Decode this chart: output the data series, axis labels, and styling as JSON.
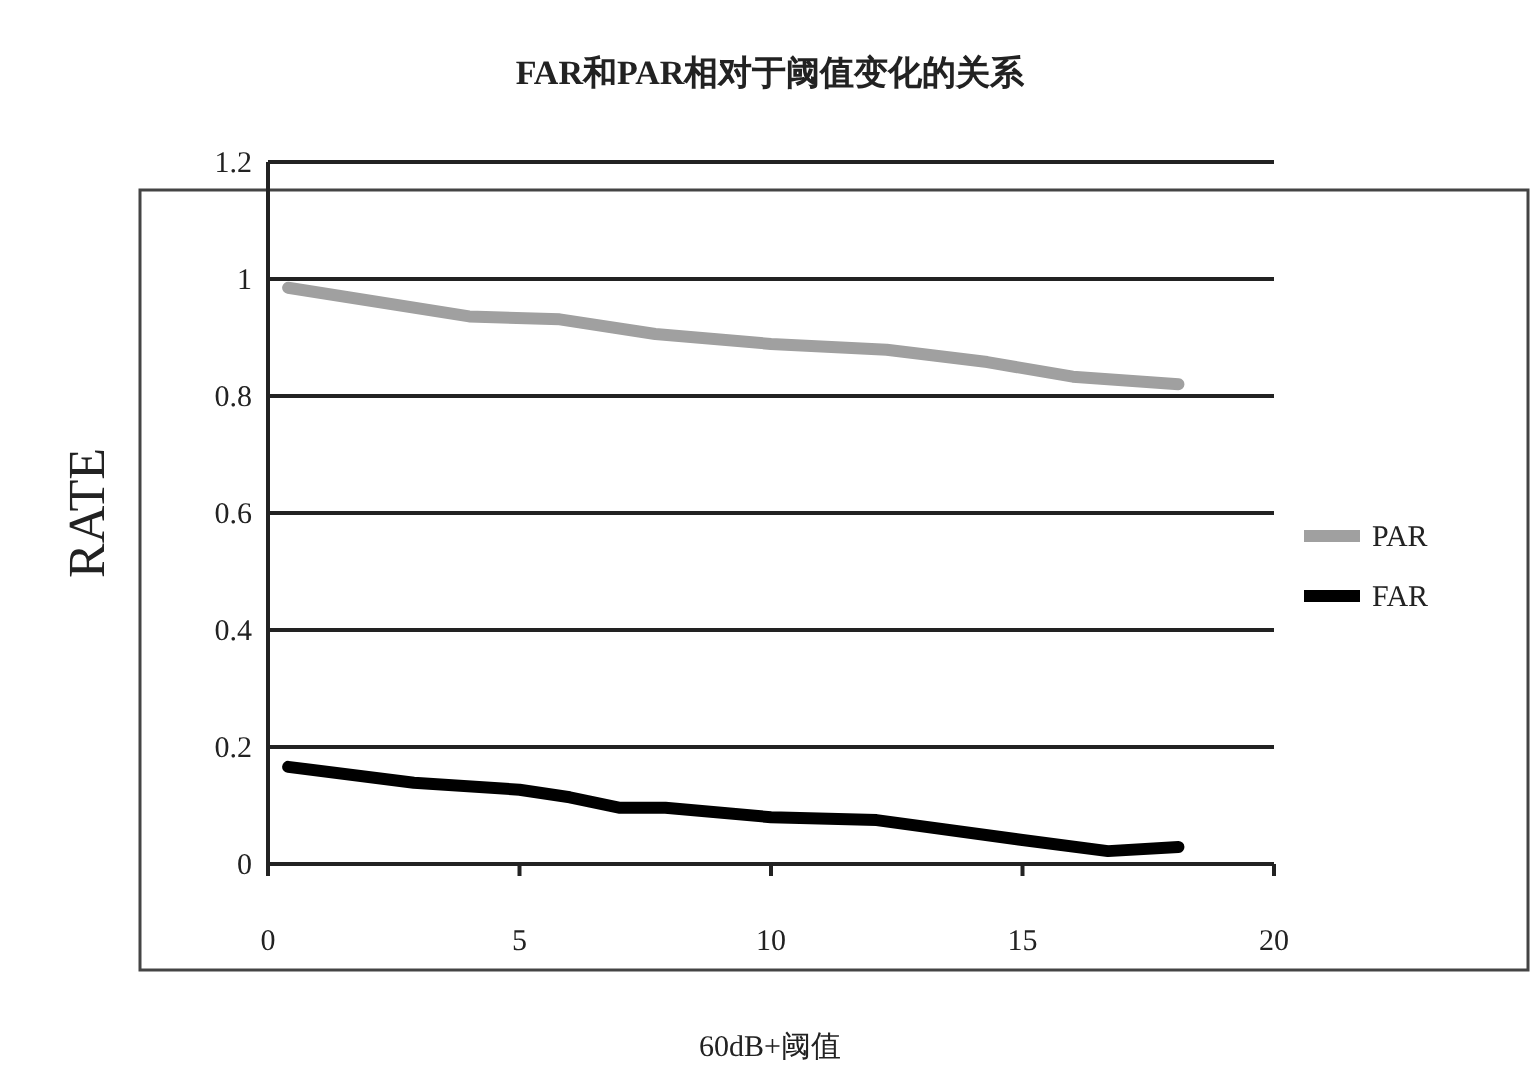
{
  "chart_data": {
    "type": "line",
    "title": "FAR和PAR相对于阈值变化的关系",
    "xlabel": "60dB+阈值",
    "ylabel": "RATE",
    "xlim": [
      0,
      20
    ],
    "xticks": [
      0,
      5,
      10,
      15,
      20
    ],
    "ylim": [
      0,
      1.2
    ],
    "yticks": [
      0,
      0.2,
      0.4,
      0.6,
      0.8,
      1,
      1.2
    ],
    "grid": "y",
    "legend": "right",
    "series": [
      {
        "name": "PAR",
        "color": "#a0a0a0",
        "x": [
          0.4,
          4,
          5.8,
          7.7,
          10,
          12.3,
          14.3,
          16,
          18.1
        ],
        "values": [
          0.985,
          0.936,
          0.931,
          0.906,
          0.889,
          0.879,
          0.858,
          0.833,
          0.82
        ]
      },
      {
        "name": "FAR",
        "color": "#000000",
        "x": [
          0.4,
          2.9,
          5,
          6,
          7,
          7.9,
          10,
          12.1,
          15,
          16.7,
          18.1
        ],
        "values": [
          0.166,
          0.139,
          0.127,
          0.114,
          0.096,
          0.096,
          0.08,
          0.075,
          0.041,
          0.022,
          0.029
        ]
      }
    ]
  }
}
